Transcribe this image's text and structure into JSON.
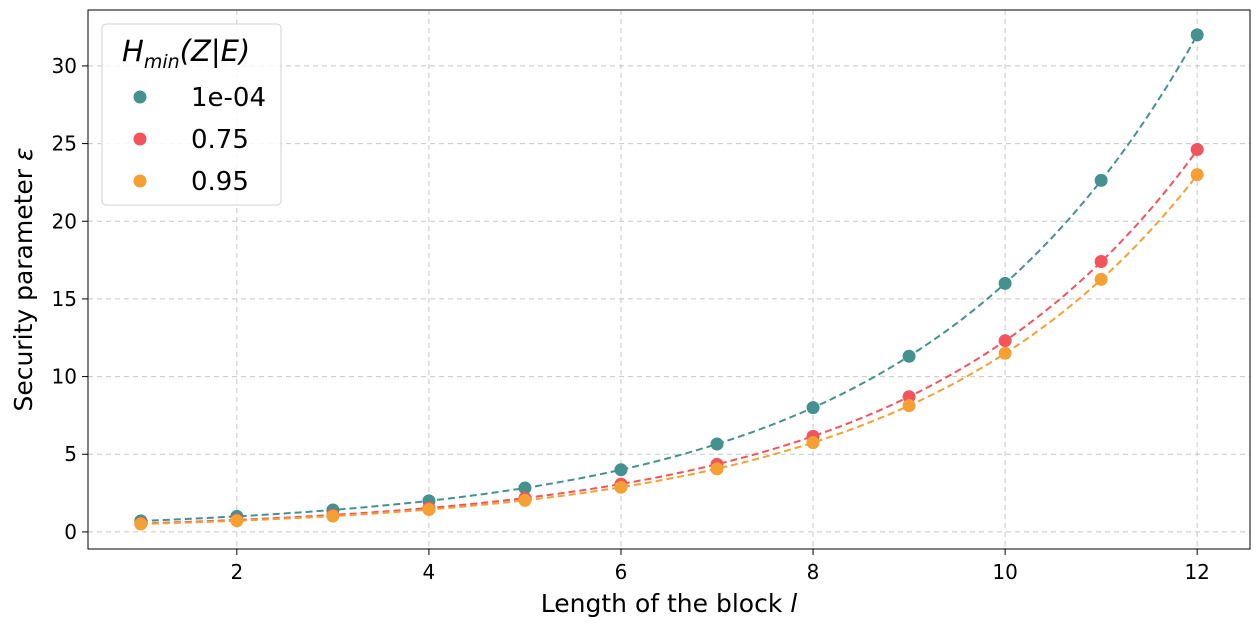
{
  "chart_data": {
    "type": "scatter",
    "title": "",
    "xlabel": "Length of the block",
    "xlabel_var": "l",
    "ylabel": "Security parameter",
    "ylabel_var": "ε",
    "xlim": [
      0.45,
      12.55
    ],
    "ylim": [
      -1.1,
      33.6
    ],
    "xticks": [
      2,
      4,
      6,
      8,
      10,
      12
    ],
    "yticks": [
      0,
      5,
      10,
      15,
      20,
      25,
      30
    ],
    "grid": true,
    "legend_placement": "top-left",
    "legend_title": {
      "main": "H",
      "sub": "min",
      "rest": "(Z|E)"
    },
    "x": [
      1,
      2,
      3,
      4,
      5,
      6,
      7,
      8,
      9,
      10,
      11,
      12
    ],
    "series": [
      {
        "name": "1e-04",
        "color": "#44918f",
        "values": [
          0.71,
          1.0,
          1.41,
          2.0,
          2.83,
          4.0,
          5.66,
          8.0,
          11.31,
          16.0,
          22.63,
          32.0
        ]
      },
      {
        "name": "0.75",
        "color": "#f2545e",
        "values": [
          0.55,
          0.77,
          1.09,
          1.54,
          2.18,
          3.08,
          4.35,
          6.15,
          8.7,
          12.31,
          17.41,
          24.62
        ]
      },
      {
        "name": "0.95",
        "color": "#f5a033",
        "values": [
          0.51,
          0.72,
          1.02,
          1.44,
          2.03,
          2.87,
          4.06,
          5.75,
          8.13,
          11.5,
          16.26,
          23.0
        ]
      }
    ],
    "fit_line_style": "dashed"
  }
}
